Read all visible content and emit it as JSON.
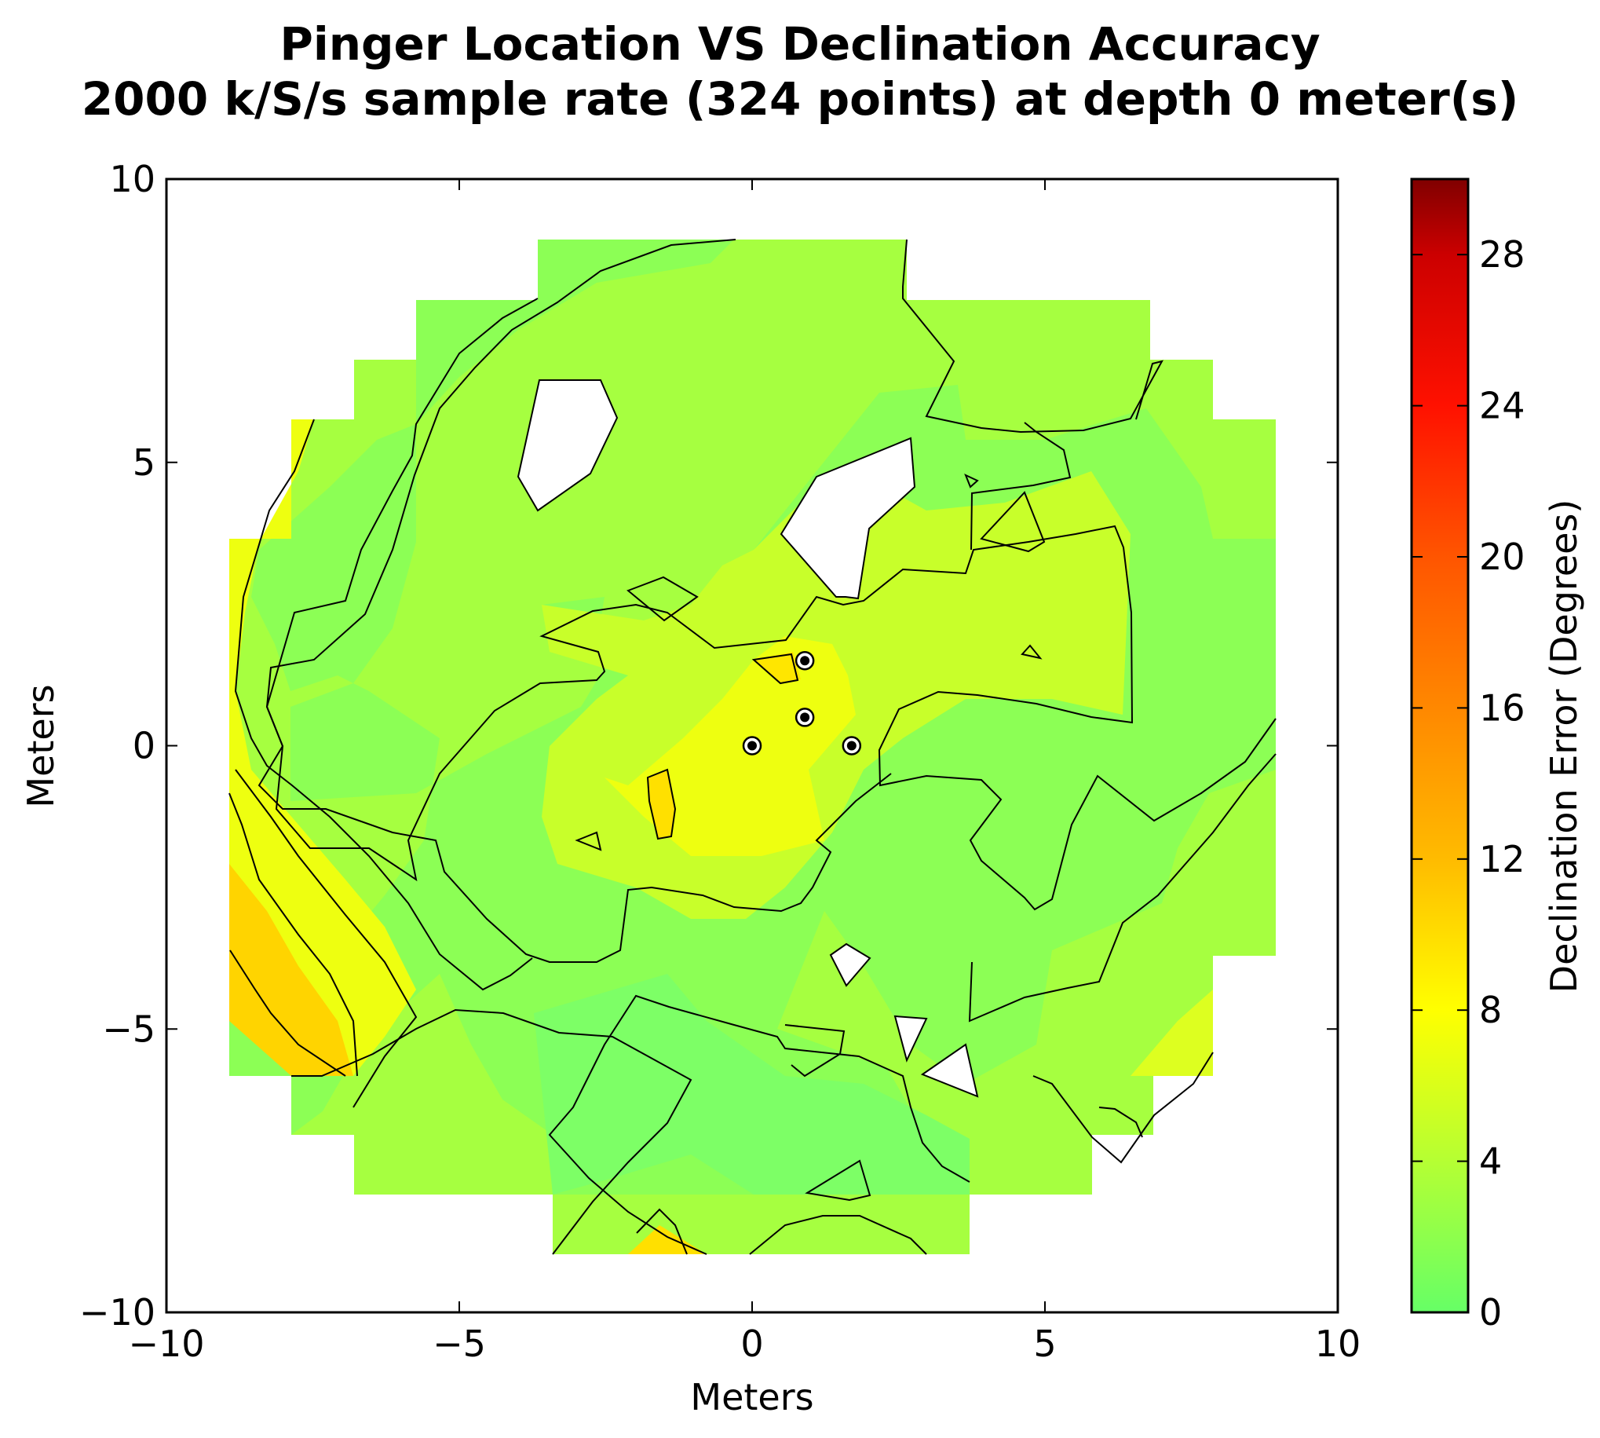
{
  "chart_data": {
    "type": "contour",
    "title": "Pinger Location VS Declination Accuracy",
    "subtitle": "2000 k/S/s sample rate (324 points) at depth 0 meter(s)",
    "xlabel": "Meters",
    "ylabel": "Meters",
    "xlim": [
      -10,
      10
    ],
    "ylim": [
      -10,
      10
    ],
    "x_ticks": [
      "−10",
      "−5",
      "0",
      "5",
      "10"
    ],
    "y_ticks": [
      "−10",
      "−5",
      "0",
      "5",
      "10"
    ],
    "colorbar": {
      "label": "Declination Error (Degrees)",
      "range": [
        0,
        30
      ],
      "ticks": [
        "0",
        "4",
        "8",
        "12",
        "16",
        "20",
        "24",
        "28"
      ],
      "colormap_stops": [
        {
          "v": 0,
          "color": "#66ff66"
        },
        {
          "v": 4,
          "color": "#b5ff33"
        },
        {
          "v": 8,
          "color": "#ffff00"
        },
        {
          "v": 12,
          "color": "#ffbb00"
        },
        {
          "v": 16,
          "color": "#ff8800"
        },
        {
          "v": 20,
          "color": "#ff5500"
        },
        {
          "v": 24,
          "color": "#ff1100"
        },
        {
          "v": 28,
          "color": "#cc0000"
        },
        {
          "v": 30,
          "color": "#800000"
        }
      ]
    },
    "hydrophones": [
      {
        "x": 0.9,
        "y": 1.5
      },
      {
        "x": 0.9,
        "y": 0.5
      },
      {
        "x": 0.0,
        "y": 0.0
      },
      {
        "x": 1.7,
        "y": 0.0
      }
    ]
  }
}
